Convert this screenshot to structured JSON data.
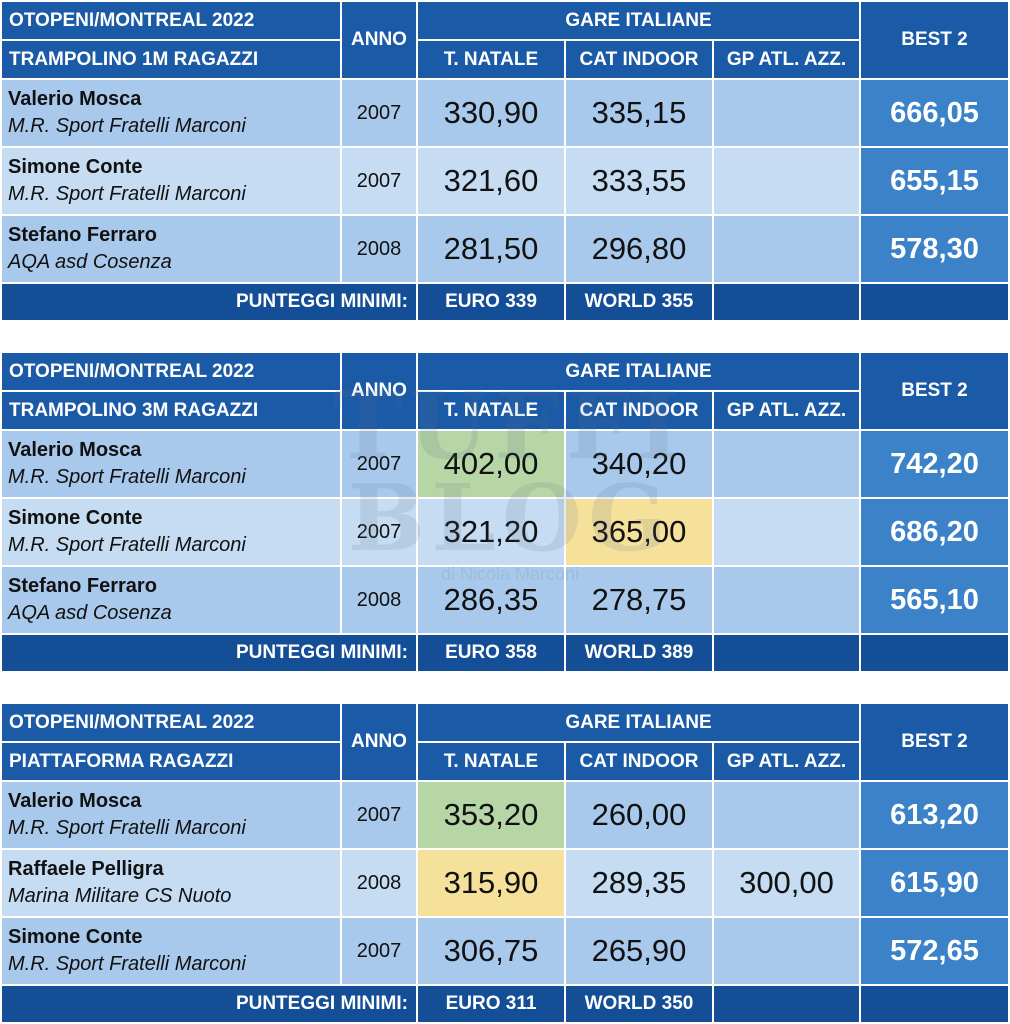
{
  "common": {
    "anno_label": "ANNO",
    "gare_label": "GARE ITALIANE",
    "best_label": "BEST 2",
    "col_natale": "T. NATALE",
    "col_cat": "CAT INDOOR",
    "col_gp": "GP ATL. AZZ.",
    "minimi_label": "PUNTEGGI MINIMI:"
  },
  "colors": {
    "header_blue": "#1b5aa6",
    "row_light": "#c5dcf2",
    "row_mid": "#a9c9ec",
    "best_blue": "#3b82c9",
    "footer_blue": "#144e97",
    "highlight_green": "#b6d6a6",
    "highlight_yellow": "#f6e19a"
  },
  "watermark": {
    "line1": "TUFFI",
    "line2": "BLOG",
    "line3": "di Nicola Marconi"
  },
  "tables": [
    {
      "event": "OTOPENI/MONTREAL 2022",
      "discipline": "TRAMPOLINO 1M RAGAZZI",
      "rows": [
        {
          "name": "Valerio Mosca",
          "club": "M.R. Sport Fratelli Marconi",
          "year": "2007",
          "natale": "330,90",
          "cat": "335,15",
          "gp": "",
          "best": "666,05"
        },
        {
          "name": "Simone Conte",
          "club": "M.R. Sport Fratelli Marconi",
          "year": "2007",
          "natale": "321,60",
          "cat": "333,55",
          "gp": "",
          "best": "655,15"
        },
        {
          "name": "Stefano Ferraro",
          "club": "AQA asd Cosenza",
          "year": "2008",
          "natale": "281,50",
          "cat": "296,80",
          "gp": "",
          "best": "578,30"
        }
      ],
      "euro": "EURO 339",
      "world": "WORLD 355"
    },
    {
      "event": "OTOPENI/MONTREAL 2022",
      "discipline": "TRAMPOLINO 3M RAGAZZI",
      "rows": [
        {
          "name": "Valerio Mosca",
          "club": "M.R. Sport Fratelli Marconi",
          "year": "2007",
          "natale": "402,00",
          "cat": "340,20",
          "gp": "",
          "best": "742,20"
        },
        {
          "name": "Simone Conte",
          "club": "M.R. Sport Fratelli Marconi",
          "year": "2007",
          "natale": "321,20",
          "cat": "365,00",
          "gp": "",
          "best": "686,20"
        },
        {
          "name": "Stefano Ferraro",
          "club": "AQA asd Cosenza",
          "year": "2008",
          "natale": "286,35",
          "cat": "278,75",
          "gp": "",
          "best": "565,10"
        }
      ],
      "euro": "EURO 358",
      "world": "WORLD 389"
    },
    {
      "event": "OTOPENI/MONTREAL 2022",
      "discipline": "PIATTAFORMA RAGAZZI",
      "rows": [
        {
          "name": "Valerio Mosca",
          "club": "M.R. Sport Fratelli Marconi",
          "year": "2007",
          "natale": "353,20",
          "cat": "260,00",
          "gp": "",
          "best": "613,20"
        },
        {
          "name": "Raffaele Pelligra",
          "club": "Marina Militare CS Nuoto",
          "year": "2008",
          "natale": "315,90",
          "cat": "289,35",
          "gp": "300,00",
          "best": "615,90"
        },
        {
          "name": "Simone Conte",
          "club": "M.R. Sport Fratelli Marconi",
          "year": "2007",
          "natale": "306,75",
          "cat": "265,90",
          "gp": "",
          "best": "572,65"
        }
      ],
      "euro": "EURO 311",
      "world": "WORLD 350"
    }
  ]
}
